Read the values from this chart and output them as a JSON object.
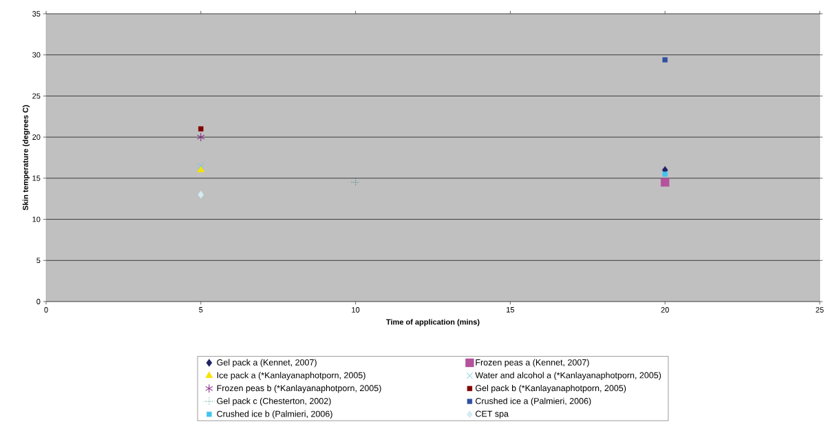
{
  "chart_data": {
    "type": "scatter",
    "xlabel": "Time of application (mins)",
    "ylabel": "Skin temperature (degrees C)",
    "xlim": [
      0,
      25
    ],
    "xticks": [
      0,
      5,
      10,
      15,
      20,
      25
    ],
    "ylim": [
      0,
      35
    ],
    "yticks": [
      0,
      5,
      10,
      15,
      20,
      25,
      30,
      35
    ],
    "grid": "y",
    "legend": "bottom",
    "series": [
      {
        "name": "Gel pack a (Kennet, 2007)",
        "color": "#1f2366",
        "marker": "diamond",
        "x": [
          20
        ],
        "values": [
          16
        ]
      },
      {
        "name": "Frozen peas a (Kennet, 2007)",
        "color": "#b4529c",
        "marker": "square",
        "x": [
          20
        ],
        "values": [
          14.5
        ]
      },
      {
        "name": "Ice pack a (*Kanlayanaphotporn, 2005)",
        "color": "#f5e400",
        "marker": "triangle",
        "x": [
          5
        ],
        "values": [
          16
        ]
      },
      {
        "name": "Water and alcohol a (*Kanlayanaphotporn, 2005)",
        "color": "#6ec8dc",
        "marker": "cross",
        "x": [
          5
        ],
        "values": [
          16.5
        ]
      },
      {
        "name": "Frozen peas b (*Kanlayanaphotporn, 2005)",
        "color": "#7f1a80",
        "marker": "cross",
        "x": [
          5
        ],
        "values": [
          20
        ]
      },
      {
        "name": "Gel pack b (*Kanlayanaphotporn, 2005)",
        "color": "#800000",
        "marker": "square",
        "x": [
          5
        ],
        "values": [
          21
        ]
      },
      {
        "name": "Gel pack c (Chesterton, 2002)",
        "color": "#107878",
        "marker": "plus",
        "line_style": "dotted",
        "x": [
          10
        ],
        "values": [
          14.5
        ]
      },
      {
        "name": "Crushed ice a (Palmieri, 2006)",
        "color": "#3050a0",
        "marker": "square",
        "x": [
          20
        ],
        "values": [
          29.4
        ]
      },
      {
        "name": "Crushed ice b (Palmieri, 2006)",
        "color": "#40c4f0",
        "marker": "square",
        "x": [
          20
        ],
        "values": [
          15.5
        ]
      },
      {
        "name": "CET spa",
        "color": "#d2ecf2",
        "marker": "diamond",
        "x": [
          5
        ],
        "values": [
          13
        ]
      }
    ]
  }
}
